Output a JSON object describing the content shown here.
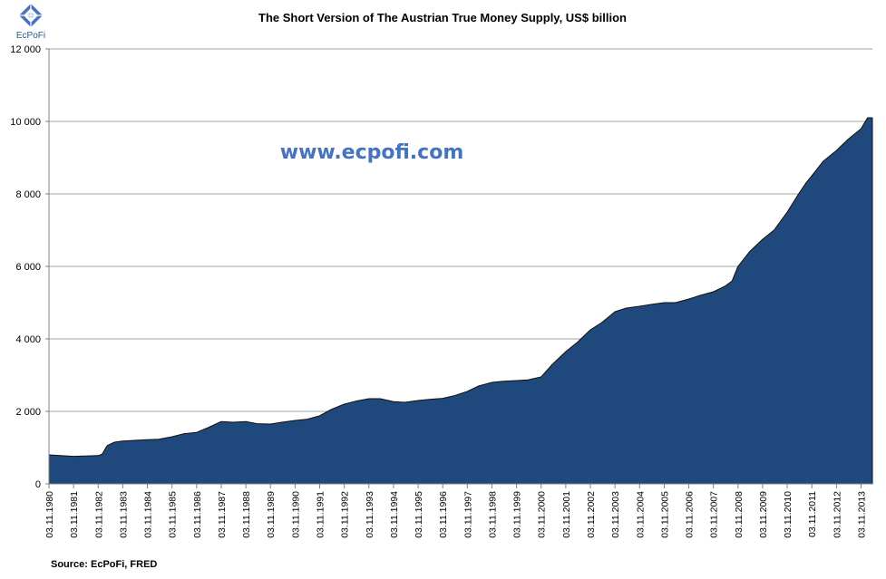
{
  "logo": {
    "text": "EcPoFi",
    "color": "#2f5597"
  },
  "watermark": {
    "text": "www.ecpofi.com",
    "color": "#4472c4"
  },
  "source": "Source: EcPoFi,  FRED",
  "colors": {
    "fill": "#1f497d",
    "outline": "#111111",
    "grid": "#a6a6a6",
    "axis": "#808080"
  },
  "chart_data": {
    "type": "area",
    "title": "The Short Version of The Austrian True Money Supply, US$ billion",
    "xlabel": "",
    "ylabel": "",
    "ylim": [
      0,
      12000
    ],
    "ytick_values": [
      0,
      2000,
      4000,
      6000,
      8000,
      10000,
      12000
    ],
    "ytick_labels": [
      "0",
      "2 000",
      "4 000",
      "6 000",
      "8 000",
      "10 000",
      "12 000"
    ],
    "xlim": [
      1980.84,
      2014.3
    ],
    "xticks": [
      "03.11.1980",
      "03.11.1981",
      "03.11.1982",
      "03.11.1983",
      "03.11.1984",
      "03.11.1985",
      "03.11.1986",
      "03.11.1987",
      "03.11.1988",
      "03.11.1989",
      "03.11.1990",
      "03.11.1991",
      "03.11.1992",
      "03.11.1993",
      "03.11.1994",
      "03.11.1995",
      "03.11.1996",
      "03.11.1997",
      "03.11.1998",
      "03.11.1999",
      "03.11.2000",
      "03.11.2001",
      "03.11.2002",
      "03.11.2003",
      "03.11.2004",
      "03.11.2005",
      "03.11.2006",
      "03.11.2007",
      "03.11.2008",
      "03.11.2009",
      "03.11.2010",
      "03.11.2011",
      "03.11.2012",
      "03.11.2013"
    ],
    "grid": true,
    "legend": "none",
    "series": [
      {
        "x": [
          1980.84,
          1981.3,
          1981.84,
          1982.3,
          1982.84,
          1983.0,
          1983.2,
          1983.5,
          1983.84,
          1984.3,
          1984.84,
          1985.3,
          1985.84,
          1986.3,
          1986.84,
          1987.3,
          1987.84,
          1988.3,
          1988.84,
          1989.3,
          1989.84,
          1990.3,
          1990.84,
          1991.3,
          1991.84,
          1992.3,
          1992.84,
          1993.3,
          1993.84,
          1994.3,
          1994.84,
          1995.3,
          1995.84,
          1996.3,
          1996.84,
          1997.3,
          1997.84,
          1998.3,
          1998.84,
          1999.3,
          1999.84,
          2000.3,
          2000.84,
          2001.3,
          2001.84,
          2002.3,
          2002.84,
          2003.3,
          2003.84,
          2004.3,
          2004.84,
          2005.3,
          2005.84,
          2006.3,
          2006.84,
          2007.3,
          2007.84,
          2008.3,
          2008.6,
          2008.84,
          2009.3,
          2009.84,
          2010.3,
          2010.84,
          2011.3,
          2011.6,
          2011.84,
          2012.3,
          2012.84,
          2013.3,
          2013.84,
          2014.1,
          2014.3
        ],
        "y": [
          800,
          780,
          760,
          770,
          780,
          820,
          1050,
          1150,
          1180,
          1200,
          1220,
          1230,
          1300,
          1380,
          1420,
          1550,
          1720,
          1700,
          1720,
          1660,
          1650,
          1700,
          1750,
          1780,
          1880,
          2050,
          2200,
          2280,
          2350,
          2350,
          2270,
          2250,
          2300,
          2330,
          2360,
          2430,
          2550,
          2700,
          2800,
          2830,
          2850,
          2870,
          2950,
          3300,
          3650,
          3900,
          4250,
          4450,
          4750,
          4850,
          4900,
          4950,
          5000,
          5000,
          5100,
          5200,
          5300,
          5450,
          5600,
          6000,
          6400,
          6750,
          7000,
          7500,
          8000,
          8300,
          8500,
          8900,
          9200,
          9500,
          9800,
          10100,
          10100
        ]
      }
    ]
  }
}
